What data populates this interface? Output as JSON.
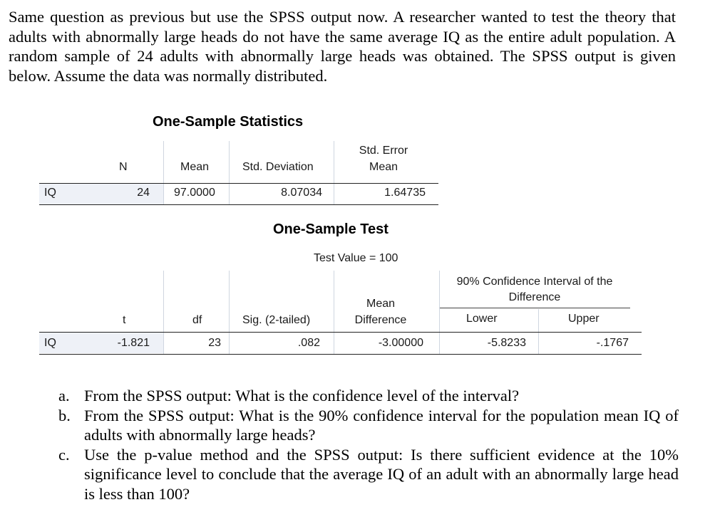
{
  "intro": "Same question as previous but use the SPSS output now. A researcher wanted to test the theory that adults with abnormally large heads do not have the same average IQ as the entire adult population. A random sample of 24 adults with abnormally large heads was obtained. The SPSS output is given below. Assume the data was normally distributed.",
  "stats": {
    "title": "One-Sample Statistics",
    "headers": {
      "n": "N",
      "mean": "Mean",
      "sd": "Std. Deviation",
      "se_top": "Std. Error",
      "se_bottom": "Mean"
    },
    "row": {
      "label": "IQ",
      "n": "24",
      "mean": "97.0000",
      "sd": "8.07034",
      "se": "1.64735"
    }
  },
  "test": {
    "title": "One-Sample Test",
    "test_value": "Test Value = 100",
    "ci_header_line1": "90% Confidence Interval of the",
    "ci_header_line2": "Difference",
    "headers": {
      "t": "t",
      "df": "df",
      "sig": "Sig. (2-tailed)",
      "md_top": "Mean",
      "md_bottom": "Difference",
      "lower": "Lower",
      "upper": "Upper"
    },
    "row": {
      "label": "IQ",
      "t": "-1.821",
      "df": "23",
      "sig": ".082",
      "md": "-3.00000",
      "lower": "-5.8233",
      "upper": "-.1767"
    }
  },
  "questions": [
    {
      "letter": "a.",
      "text": "From the SPSS output: What is the confidence level of the interval?"
    },
    {
      "letter": "b.",
      "text": "From the SPSS output: What is the 90% confidence interval for the population mean IQ of adults with abnormally large heads?"
    },
    {
      "letter": "c.",
      "text": "Use the p-value method and the SPSS output: Is there sufficient evidence at the 10% significance level to conclude that the average IQ of an adult with an abnormally large head is less than 100?"
    }
  ]
}
